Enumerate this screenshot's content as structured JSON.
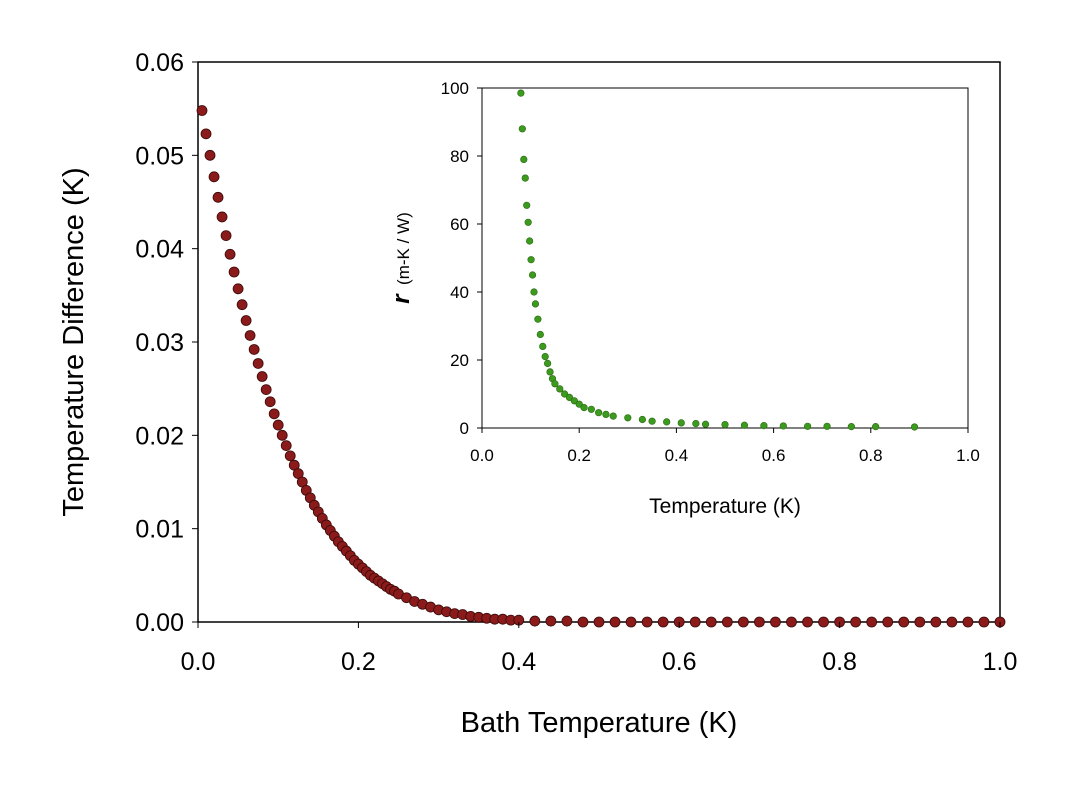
{
  "chart_data": [
    {
      "type": "scatter",
      "xlabel": "Bath Temperature  (K)",
      "ylabel": "Temperature Difference  (K)",
      "xlim": [
        0.0,
        1.0
      ],
      "ylim": [
        0.0,
        0.06
      ],
      "xticks": [
        "0.0",
        "0.2",
        "0.4",
        "0.6",
        "0.8",
        "1.0"
      ],
      "yticks": [
        "0.00",
        "0.01",
        "0.02",
        "0.03",
        "0.04",
        "0.05",
        "0.06"
      ],
      "grid": false,
      "marker_color": "#8b1a1a",
      "series": [
        {
          "x": [
            0.005,
            0.01,
            0.015,
            0.02,
            0.025,
            0.03,
            0.035,
            0.04,
            0.045,
            0.05,
            0.055,
            0.06,
            0.065,
            0.07,
            0.075,
            0.08,
            0.085,
            0.09,
            0.095,
            0.1,
            0.105,
            0.11,
            0.115,
            0.12,
            0.125,
            0.13,
            0.135,
            0.14,
            0.145,
            0.15,
            0.155,
            0.16,
            0.165,
            0.17,
            0.175,
            0.18,
            0.185,
            0.19,
            0.195,
            0.2,
            0.205,
            0.21,
            0.215,
            0.22,
            0.225,
            0.23,
            0.235,
            0.24,
            0.245,
            0.25,
            0.26,
            0.27,
            0.28,
            0.29,
            0.3,
            0.31,
            0.32,
            0.33,
            0.34,
            0.35,
            0.36,
            0.37,
            0.38,
            0.39,
            0.4,
            0.42,
            0.44,
            0.46,
            0.48,
            0.5,
            0.52,
            0.54,
            0.56,
            0.58,
            0.6,
            0.62,
            0.64,
            0.66,
            0.68,
            0.7,
            0.72,
            0.74,
            0.76,
            0.78,
            0.8,
            0.82,
            0.84,
            0.86,
            0.88,
            0.9,
            0.92,
            0.94,
            0.96,
            0.98,
            1.0
          ],
          "y": [
            0.0548,
            0.0523,
            0.05,
            0.0477,
            0.0455,
            0.0434,
            0.0414,
            0.0394,
            0.0375,
            0.0357,
            0.034,
            0.0323,
            0.0307,
            0.0292,
            0.0277,
            0.0263,
            0.0249,
            0.0236,
            0.0223,
            0.0211,
            0.02,
            0.0189,
            0.0178,
            0.0168,
            0.0159,
            0.015,
            0.0141,
            0.0133,
            0.0125,
            0.0118,
            0.0111,
            0.0104,
            0.0098,
            0.0092,
            0.0086,
            0.0081,
            0.0076,
            0.0071,
            0.0066,
            0.0062,
            0.0058,
            0.0054,
            0.005,
            0.0047,
            0.0044,
            0.0041,
            0.0038,
            0.0035,
            0.0033,
            0.003,
            0.0026,
            0.0022,
            0.0019,
            0.0016,
            0.0013,
            0.0011,
            0.0009,
            0.0008,
            0.0006,
            0.0005,
            0.0004,
            0.0003,
            0.0003,
            0.0002,
            0.0002,
            0.0001,
            0.0001,
            0.0001,
            0.0,
            0.0,
            0.0,
            0.0,
            0.0,
            0.0,
            0.0,
            0.0,
            0.0,
            0.0,
            0.0,
            0.0,
            0.0,
            0.0,
            0.0,
            0.0,
            0.0,
            0.0,
            0.0,
            0.0,
            0.0,
            0.0,
            0.0,
            0.0,
            0.0,
            0.0,
            0.0
          ]
        }
      ]
    },
    {
      "type": "scatter",
      "inset": true,
      "xlabel": "Temperature  (K)",
      "ylabel_symbol": "r",
      "ylabel_unit": "(m-K / W)",
      "xlim": [
        0.0,
        1.0
      ],
      "ylim": [
        0,
        100
      ],
      "xticks": [
        "0.0",
        "0.2",
        "0.4",
        "0.6",
        "0.8",
        "1.0"
      ],
      "yticks": [
        "0",
        "20",
        "40",
        "60",
        "80",
        "100"
      ],
      "grid": false,
      "marker_color": "#3c9a1e",
      "series": [
        {
          "x": [
            0.08,
            0.083,
            0.086,
            0.089,
            0.092,
            0.095,
            0.098,
            0.101,
            0.104,
            0.107,
            0.11,
            0.115,
            0.12,
            0.125,
            0.13,
            0.135,
            0.14,
            0.145,
            0.15,
            0.16,
            0.17,
            0.18,
            0.19,
            0.2,
            0.21,
            0.225,
            0.24,
            0.255,
            0.27,
            0.3,
            0.33,
            0.35,
            0.38,
            0.41,
            0.44,
            0.46,
            0.5,
            0.54,
            0.58,
            0.62,
            0.67,
            0.71,
            0.76,
            0.81,
            0.89
          ],
          "y": [
            98.5,
            88.0,
            79.0,
            73.5,
            65.5,
            60.5,
            55.0,
            49.5,
            45.0,
            40.0,
            36.5,
            32.0,
            27.5,
            24.0,
            21.0,
            19.0,
            16.5,
            14.5,
            13.0,
            11.5,
            10.0,
            9.0,
            8.0,
            7.0,
            6.0,
            5.5,
            4.5,
            4.0,
            3.5,
            3.0,
            2.5,
            2.0,
            1.8,
            1.5,
            1.3,
            1.1,
            1.0,
            0.8,
            0.7,
            0.6,
            0.5,
            0.5,
            0.4,
            0.4,
            0.3
          ]
        }
      ]
    }
  ]
}
